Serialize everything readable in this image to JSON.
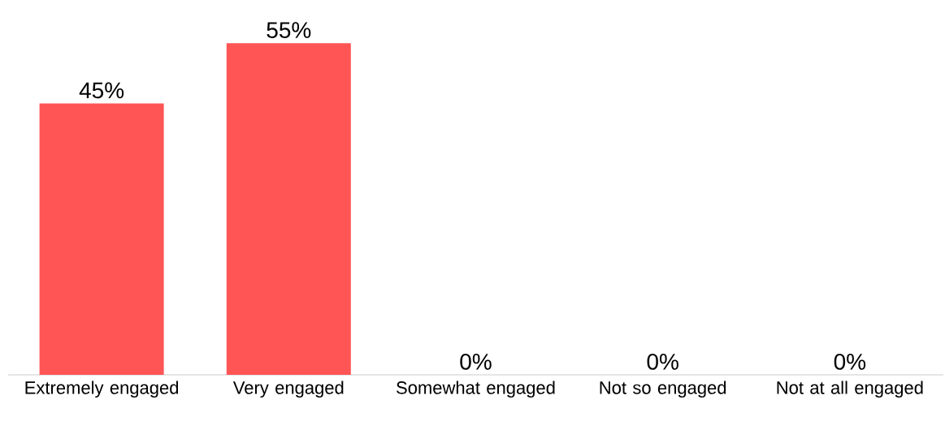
{
  "chart_data": {
    "type": "bar",
    "categories": [
      "Extremely engaged",
      "Very engaged",
      "Somewhat engaged",
      "Not so engaged",
      "Not at all engaged"
    ],
    "values": [
      45,
      55,
      0,
      0,
      0
    ],
    "value_labels": [
      "45%",
      "55%",
      "0%",
      "0%",
      "0%"
    ],
    "color": "#ff5555"
  }
}
